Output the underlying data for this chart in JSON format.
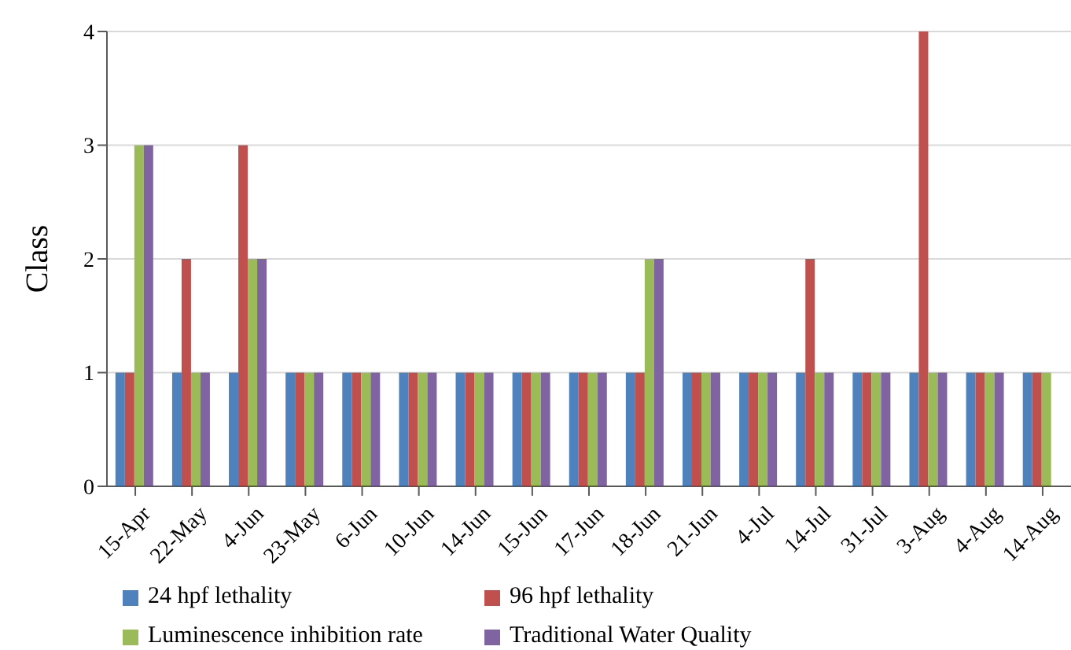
{
  "chart_data": {
    "type": "bar",
    "ylabel": "Class",
    "categories": [
      "15-Apr",
      "22-May",
      "4-Jun",
      "23-May",
      "6-Jun",
      "10-Jun",
      "14-Jun",
      "15-Jun",
      "17-Jun",
      "18-Jun",
      "21-Jun",
      "4-Jul",
      "14-Jul",
      "31-Jul",
      "3-Aug",
      "4-Aug",
      "14-Aug"
    ],
    "series": [
      {
        "name": "24 hpf lethality",
        "color": "#4f81bd",
        "values": [
          1,
          1,
          1,
          1,
          1,
          1,
          1,
          1,
          1,
          1,
          1,
          1,
          1,
          1,
          1,
          1,
          1
        ]
      },
      {
        "name": "96 hpf lethality",
        "color": "#c0504d",
        "values": [
          1,
          2,
          3,
          1,
          1,
          1,
          1,
          1,
          1,
          1,
          1,
          1,
          2,
          1,
          4,
          1,
          1
        ]
      },
      {
        "name": "Luminescence inhibition rate",
        "color": "#9bbb59",
        "values": [
          3,
          1,
          2,
          1,
          1,
          1,
          1,
          1,
          1,
          2,
          1,
          1,
          1,
          1,
          1,
          1,
          1
        ]
      },
      {
        "name": "Traditional Water Quality",
        "color": "#8064a2",
        "values": [
          3,
          1,
          2,
          1,
          1,
          1,
          1,
          1,
          1,
          2,
          1,
          1,
          1,
          1,
          1,
          1,
          null
        ]
      }
    ],
    "ylim": [
      0,
      4
    ],
    "yticks": [
      0,
      1,
      2,
      3,
      4
    ],
    "grid": "y",
    "legend": "bottom"
  }
}
